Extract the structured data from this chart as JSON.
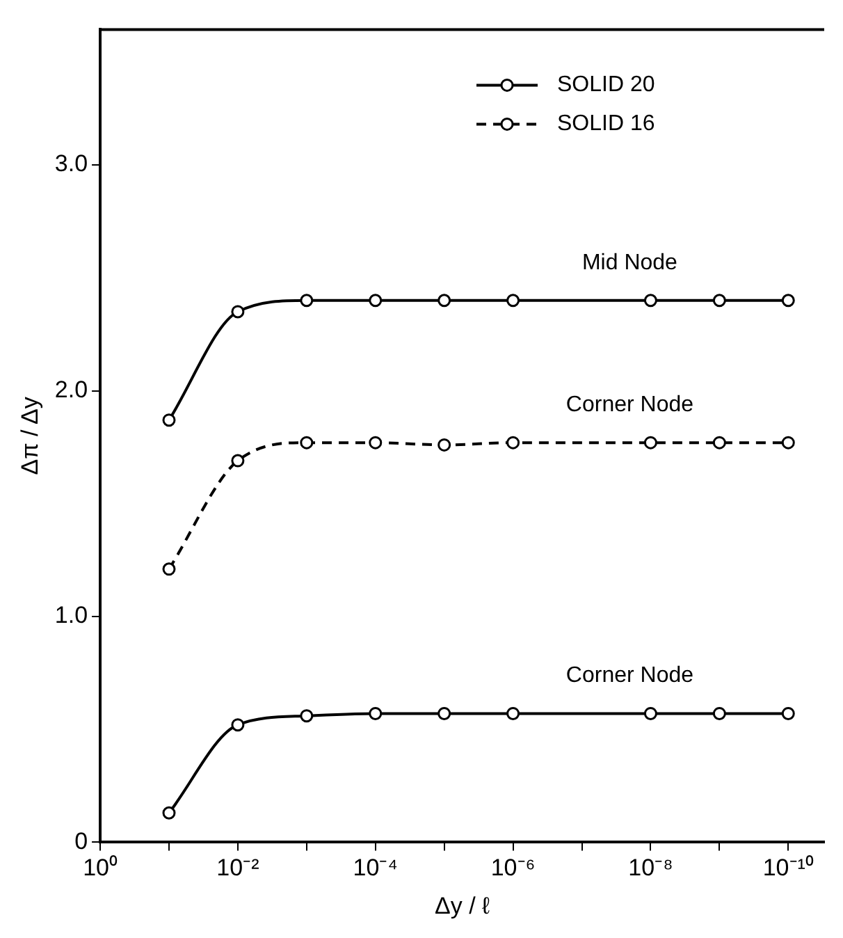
{
  "chart_data": {
    "type": "line",
    "xlabel": "Δy / ℓ",
    "ylabel": "Δπ / Δy",
    "x": [
      0.1,
      0.01,
      0.001,
      0.0001,
      1e-05,
      1e-06,
      1e-08,
      1e-09,
      1e-10
    ],
    "series": [
      {
        "name": "SOLID 20",
        "color": "#000000",
        "line_style": "solid",
        "values": [
          1.87,
          2.35,
          2.4,
          2.4,
          2.4,
          2.4,
          2.4,
          2.4,
          2.4
        ]
      },
      {
        "name": "SOLID 16",
        "color": "#000000",
        "line_style": "dashed",
        "values": [
          1.21,
          1.69,
          1.77,
          1.77,
          1.76,
          1.77,
          1.77,
          1.77,
          1.77
        ]
      },
      {
        "color": "#000000",
        "line_style": "solid",
        "values": [
          0.13,
          0.52,
          0.56,
          0.57,
          0.57,
          0.57,
          0.57,
          0.57,
          0.57
        ]
      }
    ],
    "log": "x",
    "marker": "circle",
    "legend": "top right",
    "grid": false,
    "xlim": [
      1,
      3e-11
    ],
    "ylim": [
      0,
      3.6
    ],
    "xticks": [
      {
        "value": 1,
        "label": "10⁰"
      },
      {
        "value": 0.1,
        "label": null
      },
      {
        "value": 0.01,
        "label": "10⁻²"
      },
      {
        "value": 0.001,
        "label": null
      },
      {
        "value": 0.0001,
        "label": "10⁻⁴"
      },
      {
        "value": 1e-05,
        "label": null
      },
      {
        "value": 1e-06,
        "label": "10⁻⁶"
      },
      {
        "value": 1e-07,
        "label": null
      },
      {
        "value": 1e-08,
        "label": "10⁻⁸"
      },
      {
        "value": 1e-09,
        "label": null
      },
      {
        "value": 1e-10,
        "label": "10⁻¹⁰"
      }
    ],
    "yticks": [
      0,
      {
        "value": 1,
        "label": "1.0"
      },
      {
        "value": 2,
        "label": "2.0"
      },
      {
        "value": 3,
        "label": "3.0"
      }
    ],
    "annotations": [
      "Mid Node",
      "Corner Node",
      "Corner Node"
    ]
  }
}
